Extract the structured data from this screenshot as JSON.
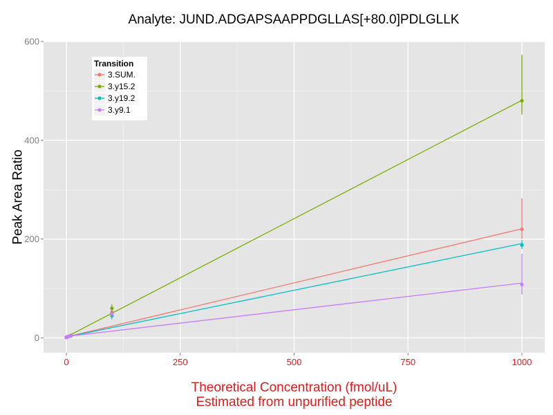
{
  "chart_data": {
    "type": "line",
    "title": "Analyte: JUND.ADGAPSAAPPDGLLAS[+80.0]PDLGLLK",
    "xlabel": [
      "Theoretical Concentration (fmol/uL)",
      "Estimated from unpurified peptide"
    ],
    "ylabel": "Peak Area Ratio",
    "xlim": [
      -50,
      1050
    ],
    "ylim": [
      -30,
      600
    ],
    "xticks": [
      0,
      250,
      500,
      750,
      1000
    ],
    "yticks": [
      0,
      200,
      400,
      600
    ],
    "grid": true,
    "legend": {
      "title": "Transition",
      "position": "top-left"
    },
    "series": [
      {
        "name": "3.SUM.",
        "color": "#F8766D",
        "fit": [
          [
            0,
            2
          ],
          [
            1000,
            221
          ]
        ],
        "points": [
          {
            "x": 0,
            "y": 1
          },
          {
            "x": 1,
            "y": 2
          },
          {
            "x": 5,
            "y": 3
          },
          {
            "x": 10,
            "y": 5
          },
          {
            "x": 100,
            "y": 52,
            "ymin": 45,
            "ymax": 60
          },
          {
            "x": 1000,
            "y": 220,
            "ymin": 200,
            "ymax": 283
          }
        ]
      },
      {
        "name": "3.y15.2",
        "color": "#7CAE00",
        "fit": [
          [
            0,
            2
          ],
          [
            1000,
            481
          ]
        ],
        "points": [
          {
            "x": 0,
            "y": 1
          },
          {
            "x": 1,
            "y": 2
          },
          {
            "x": 5,
            "y": 3
          },
          {
            "x": 10,
            "y": 5
          },
          {
            "x": 100,
            "y": 60,
            "ymin": 48,
            "ymax": 68
          },
          {
            "x": 1000,
            "y": 480,
            "ymin": 452,
            "ymax": 573
          }
        ]
      },
      {
        "name": "3.y19.2",
        "color": "#00BFC4",
        "fit": [
          [
            0,
            2
          ],
          [
            1000,
            191
          ]
        ],
        "points": [
          {
            "x": 0,
            "y": 1
          },
          {
            "x": 1,
            "y": 2
          },
          {
            "x": 5,
            "y": 3
          },
          {
            "x": 10,
            "y": 4
          },
          {
            "x": 100,
            "y": 45,
            "ymin": 38,
            "ymax": 52
          },
          {
            "x": 1000,
            "y": 188,
            "ymin": 180,
            "ymax": 198
          }
        ]
      },
      {
        "name": "3.y9.1",
        "color": "#C77CFF",
        "fit": [
          [
            0,
            3
          ],
          [
            1000,
            111
          ]
        ],
        "points": [
          {
            "x": 0,
            "y": 1
          },
          {
            "x": 1,
            "y": 2
          },
          {
            "x": 5,
            "y": 3
          },
          {
            "x": 10,
            "y": 4
          },
          {
            "x": 100,
            "y": 48,
            "ymin": 43,
            "ymax": 53
          },
          {
            "x": 1000,
            "y": 108,
            "ymin": 88,
            "ymax": 170
          }
        ]
      }
    ]
  },
  "colors": {
    "panel_background": "#E5E5E5",
    "grid_major": "#FFFFFF",
    "grid_minor": "#F2F2F2",
    "x_axis_text": "#E41A1C",
    "y_axis_text": "#7F7F7F"
  }
}
